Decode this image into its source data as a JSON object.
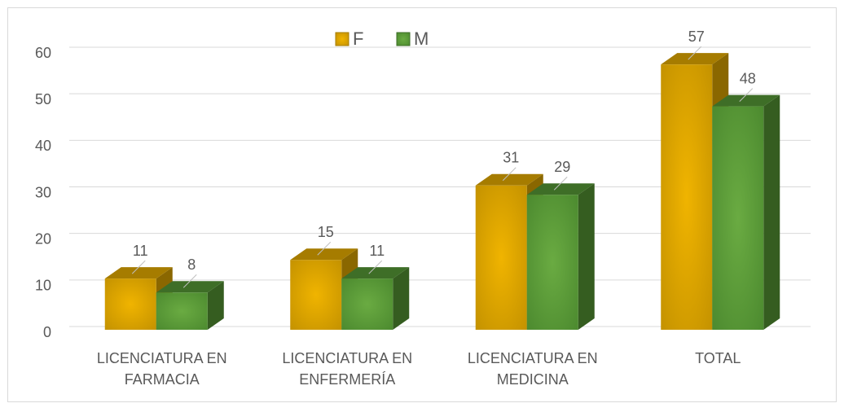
{
  "chart_data": {
    "type": "bar3d",
    "categories": [
      "LICENCIATURA EN FARMACIA",
      "LICENCIATURA EN ENFERMERÍA",
      "LICENCIATURA EN MEDICINA",
      "TOTAL"
    ],
    "series": [
      {
        "name": "F",
        "color": "#d9a400",
        "values": [
          11,
          15,
          31,
          57
        ]
      },
      {
        "name": "M",
        "color": "#5b9b3a",
        "values": [
          8,
          11,
          29,
          48
        ]
      }
    ],
    "ylim": [
      0,
      60
    ],
    "yticks": [
      0,
      10,
      20,
      30,
      40,
      50,
      60
    ],
    "grid": true,
    "legend": "top"
  }
}
